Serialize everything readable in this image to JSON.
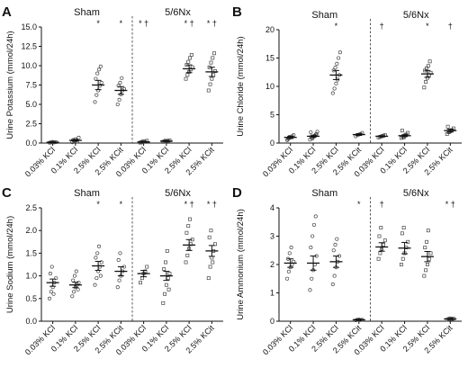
{
  "chart_data": [
    {
      "type": "scatter",
      "panel": "A",
      "ylabel": "Urine Potassium (mmol/24h)",
      "ylim": [
        0,
        15
      ],
      "yticks": [
        "0.0",
        "2.5",
        "5.0",
        "7.5",
        "10.0",
        "12.5",
        "15.0"
      ],
      "groups": [
        "Sham",
        "5/6Nx"
      ],
      "categories": [
        "0.03% KCl",
        "0.1% KCl",
        "2.5% KCl",
        "2.5% KCit",
        "0.03% KCl",
        "0.1% KCl",
        "2.5% KCl",
        "2.5% KCit"
      ],
      "markers": [
        "circle",
        "circle",
        "circle",
        "circle",
        "square",
        "square",
        "square",
        "square"
      ],
      "means": [
        0.1,
        0.35,
        7.5,
        6.8,
        0.15,
        0.25,
        9.6,
        9.2
      ],
      "sem": [
        0.05,
        0.1,
        0.6,
        0.5,
        0.05,
        0.05,
        0.5,
        0.6
      ],
      "points": [
        [
          0.05,
          0.1,
          0.15,
          0.08,
          0.12,
          0.06,
          0.1
        ],
        [
          0.1,
          0.3,
          0.5,
          0.2,
          0.7,
          0.4,
          0.25,
          0.35
        ],
        [
          5.3,
          6.2,
          6.8,
          7.4,
          7.8,
          8.3,
          9.0,
          9.5,
          9.9
        ],
        [
          5.0,
          5.6,
          6.3,
          6.8,
          7.0,
          7.4,
          7.8,
          8.4
        ],
        [
          0.05,
          0.1,
          0.2,
          0.15,
          0.3,
          0.1,
          0.2
        ],
        [
          0.15,
          0.2,
          0.3,
          0.25,
          0.35,
          0.2,
          0.3,
          0.25
        ],
        [
          8.3,
          8.8,
          9.2,
          9.5,
          9.8,
          10.1,
          10.5,
          11.0,
          11.4
        ],
        [
          6.8,
          7.6,
          8.3,
          8.8,
          9.3,
          9.8,
          10.4,
          11.0,
          11.6
        ]
      ],
      "annotations": [
        "",
        "",
        "*",
        "*",
        "* †",
        "",
        "* †",
        "* †"
      ]
    },
    {
      "type": "scatter",
      "panel": "B",
      "ylabel": "Urine Chloride (mmol/24h)",
      "ylim": [
        0,
        20
      ],
      "yticks": [
        "0",
        "5",
        "10",
        "15",
        "20"
      ],
      "groups": [
        "Sham",
        "5/6Nx"
      ],
      "categories": [
        "0.03% KCl",
        "0.1% KCl",
        "2.5% KCl",
        "2.5% KCit",
        "0.03% KCl",
        "0.1% KCl",
        "2.5% KCl",
        "2.5% KCit"
      ],
      "markers": [
        "circle",
        "circle",
        "circle",
        "circle",
        "square",
        "square",
        "square",
        "square"
      ],
      "means": [
        1.0,
        1.2,
        12.0,
        1.5,
        1.2,
        1.3,
        12.2,
        2.2
      ],
      "sem": [
        0.2,
        0.2,
        0.8,
        0.15,
        0.1,
        0.15,
        0.6,
        0.25
      ],
      "points": [
        [
          0.5,
          0.8,
          1.0,
          1.2,
          1.4,
          0.7,
          1.1
        ],
        [
          0.6,
          0.9,
          1.1,
          1.3,
          1.6,
          1.9,
          0.8,
          1.2,
          1.5,
          2.0
        ],
        [
          8.8,
          9.6,
          10.5,
          11.2,
          12.0,
          12.8,
          13.3,
          14.0,
          15.0,
          16.0
        ],
        [
          1.2,
          1.4,
          1.5,
          1.6,
          1.8
        ],
        [
          1.0,
          1.1,
          1.2,
          1.3,
          1.4
        ],
        [
          0.9,
          1.1,
          1.3,
          1.5,
          1.8,
          2.2,
          1.0,
          1.4
        ],
        [
          9.8,
          10.8,
          11.5,
          12.0,
          12.4,
          12.8,
          13.2,
          13.6,
          14.4
        ],
        [
          1.6,
          1.9,
          2.1,
          2.3,
          2.6,
          2.9,
          2.0
        ]
      ],
      "annotations": [
        "",
        "",
        "*",
        "",
        "†",
        "",
        "*",
        "†"
      ]
    },
    {
      "type": "scatter",
      "panel": "C",
      "ylabel": "Urine Sodium (mmol/24h)",
      "ylim": [
        0,
        2.5
      ],
      "yticks": [
        "0.0",
        "0.5",
        "1.0",
        "1.5",
        "2.0",
        "2.5"
      ],
      "groups": [
        "Sham",
        "5/6Nx"
      ],
      "categories": [
        "0.03% KCl",
        "0.1% KCl",
        "2.5% KCl",
        "2.5% KCit",
        "0.03% KCl",
        "0.1% KCl",
        "2.5% KCl",
        "2.5% KCit"
      ],
      "markers": [
        "circle",
        "circle",
        "circle",
        "circle",
        "square",
        "square",
        "square",
        "square"
      ],
      "means": [
        0.85,
        0.8,
        1.22,
        1.1,
        1.05,
        1.0,
        1.68,
        1.55
      ],
      "sem": [
        0.08,
        0.06,
        0.1,
        0.1,
        0.07,
        0.1,
        0.12,
        0.12
      ],
      "points": [
        [
          0.5,
          0.65,
          0.75,
          0.85,
          0.95,
          1.05,
          1.2,
          0.6
        ],
        [
          0.55,
          0.65,
          0.75,
          0.8,
          0.85,
          0.9,
          1.0,
          1.1,
          0.7
        ],
        [
          0.8,
          0.95,
          1.1,
          1.2,
          1.3,
          1.4,
          1.5,
          1.65,
          1.0
        ],
        [
          0.75,
          0.9,
          1.0,
          1.1,
          1.2,
          1.35,
          1.5
        ],
        [
          0.85,
          0.95,
          1.05,
          1.1,
          1.2
        ],
        [
          0.4,
          0.6,
          0.8,
          0.95,
          1.05,
          1.15,
          1.3,
          1.55,
          0.7
        ],
        [
          1.3,
          1.45,
          1.6,
          1.7,
          1.8,
          1.95,
          2.1,
          2.25
        ],
        [
          0.95,
          1.2,
          1.4,
          1.55,
          1.7,
          1.85,
          2.0,
          1.3
        ]
      ],
      "annotations": [
        "",
        "",
        "*",
        "*",
        "",
        "",
        "* †",
        "* †"
      ]
    },
    {
      "type": "scatter",
      "panel": "D",
      "ylabel": "Urine Ammonium (mmol/24h)",
      "ylim": [
        0,
        4
      ],
      "yticks": [
        "0",
        "1",
        "2",
        "3",
        "4"
      ],
      "groups": [
        "Sham",
        "5/6Nx"
      ],
      "categories": [
        "0.03% KCl",
        "0.1% KCl",
        "2.5% KCl",
        "2.5% KCit",
        "0.03% KCl",
        "0.1% KCl",
        "2.5% KCl",
        "2.5% KCit"
      ],
      "markers": [
        "circle",
        "circle",
        "circle",
        "circle",
        "square",
        "square",
        "square",
        "square"
      ],
      "means": [
        2.05,
        2.05,
        2.1,
        0.05,
        2.62,
        2.58,
        2.28,
        0.08
      ],
      "sem": [
        0.15,
        0.25,
        0.2,
        0.02,
        0.15,
        0.2,
        0.18,
        0.02
      ],
      "points": [
        [
          1.5,
          1.75,
          1.9,
          2.0,
          2.1,
          2.2,
          2.4,
          2.6
        ],
        [
          1.1,
          1.5,
          1.8,
          2.0,
          2.3,
          2.6,
          3.0,
          3.4,
          3.7
        ],
        [
          1.3,
          1.6,
          1.9,
          2.1,
          2.3,
          2.5,
          2.7,
          2.9
        ],
        [
          0.03,
          0.05,
          0.06,
          0.04,
          0.05
        ],
        [
          2.2,
          2.4,
          2.55,
          2.7,
          2.85,
          3.0,
          3.3
        ],
        [
          2.0,
          2.2,
          2.4,
          2.6,
          2.8,
          3.1,
          3.3
        ],
        [
          1.6,
          1.8,
          2.0,
          2.2,
          2.4,
          2.6,
          2.8,
          3.2
        ],
        [
          0.05,
          0.08,
          0.1,
          0.07,
          0.09
        ]
      ],
      "annotations": [
        "",
        "",
        "",
        "*",
        "†",
        "",
        "",
        "* †"
      ]
    }
  ]
}
